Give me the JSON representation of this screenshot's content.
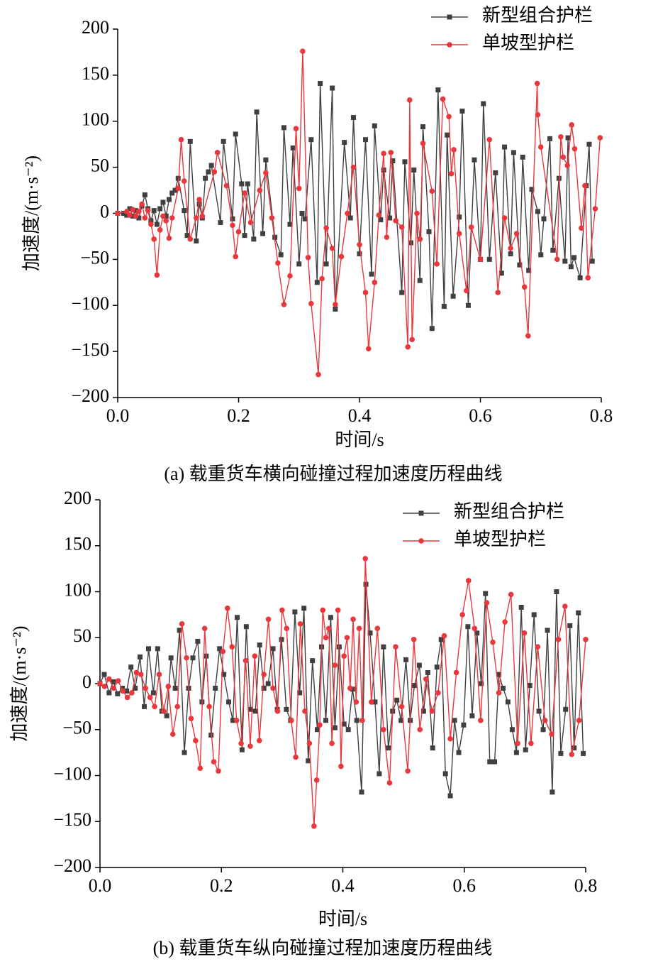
{
  "chart_data": [
    {
      "type": "line",
      "caption": "(a) 载重货车横向碰撞过程加速度历程曲线",
      "x_label": "时间/s",
      "y_label": "加速度/(m·s⁻²)",
      "xlim": [
        0,
        0.8
      ],
      "ylim": [
        -200,
        200
      ],
      "xticks": [
        {
          "value": 0,
          "label": "0.0"
        },
        0.2,
        0.4,
        0.6,
        0.8
      ],
      "yticks": [
        {
          "value": -200,
          "label": "−200"
        },
        {
          "value": -150,
          "label": "−150"
        },
        {
          "value": -100,
          "label": "−100"
        },
        {
          "value": -50,
          "label": "−50"
        },
        0,
        50,
        100,
        150,
        200
      ],
      "legend": "upper right",
      "series": [
        {
          "name": "新型组合护栏",
          "color": "#404040",
          "marker": "square",
          "x": [
            0,
            0.01,
            0.015,
            0.02,
            0.025,
            0.03,
            0.035,
            0.04,
            0.045,
            0.05,
            0.055,
            0.06,
            0.065,
            0.07,
            0.075,
            0.08,
            0.085,
            0.09,
            0.095,
            0.1,
            0.11,
            0.115,
            0.12,
            0.13,
            0.135,
            0.14,
            0.145,
            0.15,
            0.155,
            0.17,
            0.175,
            0.19,
            0.195,
            0.205,
            0.21,
            0.215,
            0.225,
            0.23,
            0.24,
            0.245,
            0.26,
            0.27,
            0.275,
            0.285,
            0.29,
            0.3,
            0.305,
            0.31,
            0.32,
            0.33,
            0.335,
            0.345,
            0.355,
            0.36,
            0.375,
            0.385,
            0.39,
            0.4,
            0.41,
            0.42,
            0.425,
            0.435,
            0.44,
            0.45,
            0.455,
            0.47,
            0.475,
            0.485,
            0.49,
            0.5,
            0.505,
            0.515,
            0.52,
            0.53,
            0.54,
            0.545,
            0.555,
            0.565,
            0.57,
            0.58,
            0.59,
            0.6,
            0.605,
            0.615,
            0.625,
            0.635,
            0.64,
            0.65,
            0.655,
            0.665,
            0.67,
            0.68,
            0.685,
            0.695,
            0.7,
            0.705,
            0.715,
            0.72,
            0.73,
            0.74,
            0.745,
            0.75,
            0.755,
            0.765,
            0.775,
            0.78,
            0.785
          ],
          "values": [
            0,
            0,
            -2,
            5,
            -3,
            3,
            -5,
            8,
            20,
            5,
            -8,
            3,
            -12,
            5,
            12,
            -3,
            15,
            22,
            25,
            38,
            3,
            -24,
            78,
            -30,
            10,
            -5,
            38,
            45,
            52,
            -10,
            78,
            -6,
            86,
            32,
            -24,
            32,
            -28,
            110,
            -22,
            58,
            -26,
            -45,
            93,
            -12,
            71,
            -55,
            0,
            -6,
            80,
            -75,
            141,
            -55,
            136,
            -104,
            77,
            -5,
            104,
            -44,
            80,
            -66,
            95,
            -7,
            47,
            -5,
            57,
            -86,
            56,
            -32,
            47,
            -73,
            94,
            -20,
            -125,
            134,
            -101,
            85,
            -90,
            -4,
            111,
            -100,
            58,
            -50,
            119,
            -50,
            44,
            -65,
            72,
            -44,
            66,
            -56,
            61,
            -62,
            26,
            2,
            -45,
            -6,
            81,
            -40,
            38,
            -52,
            82,
            -58,
            -48,
            -70,
            30,
            75,
            -52
          ]
        },
        {
          "name": "单坡型护栏",
          "color": "#e8383d",
          "marker": "circle",
          "x": [
            0,
            0.015,
            0.02,
            0.025,
            0.03,
            0.035,
            0.04,
            0.045,
            0.05,
            0.055,
            0.06,
            0.065,
            0.07,
            0.075,
            0.08,
            0.085,
            0.09,
            0.1,
            0.105,
            0.11,
            0.12,
            0.13,
            0.135,
            0.14,
            0.16,
            0.165,
            0.18,
            0.19,
            0.195,
            0.2,
            0.21,
            0.22,
            0.235,
            0.245,
            0.255,
            0.265,
            0.275,
            0.285,
            0.295,
            0.3,
            0.306,
            0.315,
            0.32,
            0.332,
            0.338,
            0.345,
            0.355,
            0.36,
            0.37,
            0.38,
            0.39,
            0.4,
            0.41,
            0.415,
            0.425,
            0.432,
            0.44,
            0.445,
            0.452,
            0.46,
            0.47,
            0.48,
            0.483,
            0.487,
            0.495,
            0.5,
            0.505,
            0.52,
            0.528,
            0.538,
            0.548,
            0.552,
            0.556,
            0.565,
            0.577,
            0.585,
            0.6,
            0.615,
            0.629,
            0.64,
            0.65,
            0.66,
            0.673,
            0.679,
            0.694,
            0.695,
            0.7,
            0.727,
            0.733,
            0.737,
            0.744,
            0.751,
            0.756,
            0.767,
            0.773,
            0.778,
            0.79,
            0.798
          ],
          "values": [
            0,
            2,
            -2,
            4,
            -3,
            2,
            10,
            -5,
            3,
            -12,
            -28,
            -67,
            -18,
            -3,
            -8,
            -27,
            -5,
            27,
            80,
            35,
            -28,
            -5,
            15,
            -3,
            45,
            66,
            30,
            -13,
            -47,
            -20,
            22,
            -10,
            25,
            44,
            -5,
            -54,
            -99,
            -68,
            92,
            27,
            176,
            -48,
            -98,
            -175,
            -71,
            -16,
            -38,
            -99,
            -47,
            0,
            50,
            -34,
            -86,
            -147,
            -75,
            -2,
            65,
            -26,
            66,
            -8,
            -15,
            -145,
            123,
            -137,
            0,
            -28,
            76,
            24,
            -55,
            124,
            105,
            43,
            69,
            -22,
            -84,
            -15,
            -50,
            80,
            -86,
            -5,
            -38,
            -22,
            -80,
            -133,
            141,
            107,
            72,
            -50,
            83,
            61,
            52,
            96,
            70,
            -16,
            30,
            -70,
            5,
            82
          ]
        }
      ]
    },
    {
      "type": "line",
      "caption": "(b) 载重货车纵向碰撞过程加速度历程曲线",
      "x_label": "时间/s",
      "y_label": "加速度/(m·s⁻²)",
      "xlim": [
        0,
        0.8
      ],
      "ylim": [
        -200,
        200
      ],
      "xticks": [
        {
          "value": 0,
          "label": "0.0"
        },
        0.2,
        0.4,
        0.6,
        0.8
      ],
      "yticks": [
        {
          "value": -200,
          "label": "−200"
        },
        {
          "value": -150,
          "label": "−150"
        },
        {
          "value": -100,
          "label": "−100"
        },
        {
          "value": -50,
          "label": "−50"
        },
        0,
        50,
        100,
        150,
        200
      ],
      "legend": "upper right",
      "series": [
        {
          "name": "新型组合护栏",
          "color": "#404040",
          "marker": "square",
          "x": [
            0,
            0.007,
            0.015,
            0.022,
            0.029,
            0.037,
            0.044,
            0.051,
            0.058,
            0.066,
            0.073,
            0.08,
            0.088,
            0.095,
            0.102,
            0.11,
            0.117,
            0.124,
            0.131,
            0.139,
            0.146,
            0.153,
            0.161,
            0.168,
            0.175,
            0.183,
            0.19,
            0.197,
            0.204,
            0.212,
            0.219,
            0.226,
            0.234,
            0.241,
            0.248,
            0.256,
            0.263,
            0.27,
            0.277,
            0.285,
            0.292,
            0.299,
            0.307,
            0.314,
            0.321,
            0.329,
            0.336,
            0.343,
            0.35,
            0.358,
            0.365,
            0.372,
            0.38,
            0.387,
            0.394,
            0.402,
            0.409,
            0.416,
            0.423,
            0.431,
            0.438,
            0.445,
            0.453,
            0.46,
            0.467,
            0.475,
            0.482,
            0.489,
            0.496,
            0.504,
            0.511,
            0.518,
            0.526,
            0.533,
            0.54,
            0.548,
            0.555,
            0.562,
            0.569,
            0.577,
            0.584,
            0.591,
            0.599,
            0.606,
            0.613,
            0.621,
            0.628,
            0.635,
            0.642,
            0.65,
            0.657,
            0.664,
            0.672,
            0.679,
            0.686,
            0.694,
            0.701,
            0.708,
            0.715,
            0.723,
            0.73,
            0.737,
            0.745,
            0.752,
            0.759,
            0.767,
            0.774,
            0.781,
            0.788,
            0.796
          ],
          "values": [
            0,
            10,
            -10,
            2,
            -11,
            -5,
            -8,
            18,
            -5,
            29,
            -25,
            38,
            -10,
            38,
            -30,
            -35,
            28,
            -5,
            58,
            -75,
            -5,
            28,
            46,
            -20,
            30,
            -56,
            -5,
            38,
            10,
            -20,
            -40,
            72,
            -72,
            62,
            -28,
            -30,
            42,
            -5,
            0,
            38,
            -28,
            48,
            -28,
            -40,
            78,
            -10,
            82,
            -84,
            25,
            -50,
            40,
            -40,
            72,
            -48,
            40,
            -44,
            -50,
            -6,
            -40,
            -118,
            108,
            55,
            -20,
            -98,
            40,
            -70,
            -30,
            -18,
            -40,
            26,
            -40,
            -2,
            20,
            -30,
            12,
            -70,
            18,
            48,
            -98,
            -122,
            -40,
            -75,
            -45,
            62,
            -35,
            55,
            0,
            98,
            -85,
            -85,
            10,
            -5,
            -20,
            -50,
            -75,
            83,
            -72,
            -2,
            75,
            -30,
            -50,
            58,
            -118,
            100,
            -76,
            -28,
            63,
            -70,
            77,
            -76
          ]
        },
        {
          "name": "单坡型护栏",
          "color": "#e8383d",
          "marker": "circle",
          "x": [
            0,
            0.0075,
            0.015,
            0.0225,
            0.03,
            0.0375,
            0.045,
            0.0525,
            0.06,
            0.0675,
            0.075,
            0.0825,
            0.09,
            0.0975,
            0.105,
            0.1125,
            0.12,
            0.1275,
            0.135,
            0.1425,
            0.15,
            0.1575,
            0.165,
            0.1725,
            0.18,
            0.1875,
            0.195,
            0.2025,
            0.21,
            0.2175,
            0.225,
            0.2325,
            0.24,
            0.2475,
            0.255,
            0.2625,
            0.27,
            0.2775,
            0.285,
            0.2925,
            0.3,
            0.3075,
            0.315,
            0.3225,
            0.33,
            0.3375,
            0.345,
            0.3525,
            0.357,
            0.362,
            0.367,
            0.372,
            0.377,
            0.382,
            0.387,
            0.392,
            0.397,
            0.402,
            0.407,
            0.412,
            0.417,
            0.422,
            0.427,
            0.432,
            0.437,
            0.447,
            0.457,
            0.467,
            0.477,
            0.487,
            0.497,
            0.507,
            0.517,
            0.527,
            0.537,
            0.547,
            0.557,
            0.567,
            0.577,
            0.587,
            0.597,
            0.607,
            0.617,
            0.627,
            0.637,
            0.647,
            0.657,
            0.667,
            0.677,
            0.688,
            0.699,
            0.71,
            0.721,
            0.733,
            0.744,
            0.755,
            0.766,
            0.777,
            0.789,
            0.8
          ],
          "values": [
            0,
            -3,
            5,
            -5,
            3,
            -8,
            -15,
            -10,
            12,
            10,
            -5,
            -15,
            -25,
            10,
            -30,
            -3,
            -55,
            -25,
            65,
            28,
            -38,
            -62,
            -92,
            60,
            -25,
            -85,
            -95,
            35,
            82,
            40,
            -40,
            -65,
            25,
            -68,
            30,
            -62,
            10,
            70,
            -5,
            -30,
            80,
            60,
            -40,
            -80,
            65,
            -30,
            -65,
            -155,
            -105,
            -45,
            80,
            50,
            60,
            -65,
            20,
            80,
            -90,
            30,
            50,
            -5,
            70,
            -20,
            60,
            -40,
            136,
            -20,
            60,
            -50,
            -108,
            40,
            -25,
            -95,
            48,
            -50,
            5,
            -30,
            -10,
            52,
            -60,
            12,
            75,
            112,
            60,
            -40,
            88,
            45,
            -10,
            67,
            97,
            -65,
            55,
            -65,
            40,
            -40,
            -55,
            48,
            84,
            -77,
            -40,
            48
          ]
        }
      ]
    }
  ]
}
